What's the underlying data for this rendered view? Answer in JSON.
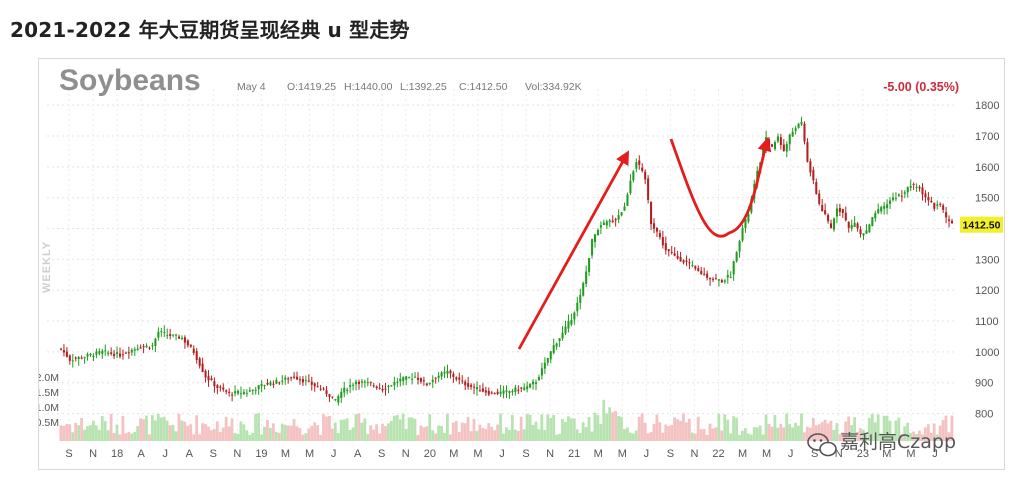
{
  "heading": "2021-2022 年大豆期货呈现经典 u 型走势",
  "watermark": "嘉利高Czapp",
  "chart_data": {
    "type": "candlestick",
    "symbol": "Soybeans",
    "date": "May 4",
    "ohlc_label": {
      "open": "O:1419.25",
      "high": "H:1440.00",
      "low": "L:1392.25",
      "close": "C:1412.50",
      "volume": "Vol:334.92K"
    },
    "change": "-5.00 (0.35%)",
    "period_label": "WEEKLY",
    "last_price_label": "1412.50",
    "last_price": 1412.5,
    "ylim": [
      750,
      1820
    ],
    "y_ticks": [
      800,
      900,
      1000,
      1100,
      1200,
      1300,
      1400,
      1500,
      1600,
      1700,
      1800
    ],
    "volume_ticks": [
      "2.0M",
      "1.5M",
      "1.0M",
      "0.5M"
    ],
    "x_tick_labels": [
      "S",
      "N",
      "18",
      "A",
      "J",
      "A",
      "S",
      "N",
      "19",
      "M",
      "M",
      "J",
      "A",
      "S",
      "N",
      "20",
      "M",
      "M",
      "J",
      "S",
      "N",
      "21",
      "M",
      "M",
      "J",
      "S",
      "N",
      "22",
      "M",
      "M",
      "J",
      "S",
      "N",
      "23",
      "M",
      "M",
      "J"
    ],
    "price_path": [
      [
        0,
        1010
      ],
      [
        3,
        975
      ],
      [
        8,
        985
      ],
      [
        14,
        1000
      ],
      [
        20,
        990
      ],
      [
        26,
        1015
      ],
      [
        31,
        1020
      ],
      [
        33,
        1065
      ],
      [
        36,
        1055
      ],
      [
        41,
        1045
      ],
      [
        45,
        1000
      ],
      [
        49,
        920
      ],
      [
        53,
        885
      ],
      [
        57,
        865
      ],
      [
        63,
        870
      ],
      [
        69,
        895
      ],
      [
        74,
        905
      ],
      [
        79,
        920
      ],
      [
        84,
        900
      ],
      [
        88,
        880
      ],
      [
        91,
        860
      ],
      [
        93,
        840
      ],
      [
        95,
        870
      ],
      [
        100,
        905
      ],
      [
        105,
        895
      ],
      [
        109,
        880
      ],
      [
        115,
        910
      ],
      [
        120,
        920
      ],
      [
        124,
        895
      ],
      [
        127,
        920
      ],
      [
        131,
        935
      ],
      [
        136,
        900
      ],
      [
        141,
        880
      ],
      [
        146,
        865
      ],
      [
        151,
        870
      ],
      [
        155,
        880
      ],
      [
        158,
        885
      ],
      [
        161,
        905
      ],
      [
        164,
        960
      ],
      [
        167,
        1020
      ],
      [
        170,
        1060
      ],
      [
        173,
        1110
      ],
      [
        176,
        1180
      ],
      [
        178,
        1260
      ],
      [
        180,
        1360
      ],
      [
        182,
        1400
      ],
      [
        185,
        1420
      ],
      [
        188,
        1430
      ],
      [
        191,
        1470
      ],
      [
        193,
        1560
      ],
      [
        195,
        1620
      ],
      [
        197,
        1580
      ],
      [
        198,
        1560
      ],
      [
        200,
        1420
      ],
      [
        202,
        1390
      ],
      [
        205,
        1330
      ],
      [
        208,
        1310
      ],
      [
        212,
        1290
      ],
      [
        216,
        1260
      ],
      [
        220,
        1240
      ],
      [
        224,
        1230
      ],
      [
        227,
        1250
      ],
      [
        229,
        1330
      ],
      [
        231,
        1400
      ],
      [
        233,
        1450
      ],
      [
        235,
        1540
      ],
      [
        237,
        1620
      ],
      [
        239,
        1690
      ],
      [
        241,
        1660
      ],
      [
        243,
        1700
      ],
      [
        245,
        1650
      ],
      [
        247,
        1700
      ],
      [
        249,
        1730
      ],
      [
        251,
        1740
      ],
      [
        253,
        1620
      ],
      [
        255,
        1550
      ],
      [
        257,
        1480
      ],
      [
        259,
        1440
      ],
      [
        261,
        1400
      ],
      [
        263,
        1470
      ],
      [
        265,
        1450
      ],
      [
        267,
        1400
      ],
      [
        269,
        1420
      ],
      [
        271,
        1380
      ],
      [
        273,
        1390
      ],
      [
        276,
        1450
      ],
      [
        279,
        1470
      ],
      [
        282,
        1500
      ],
      [
        285,
        1510
      ],
      [
        288,
        1540
      ],
      [
        291,
        1530
      ],
      [
        294,
        1490
      ],
      [
        296,
        1470
      ],
      [
        298,
        1480
      ],
      [
        300,
        1430
      ],
      [
        302,
        1412.5
      ]
    ],
    "annotations": [
      "rising-arrow",
      "u-curve",
      "rising-arrow-2"
    ]
  }
}
